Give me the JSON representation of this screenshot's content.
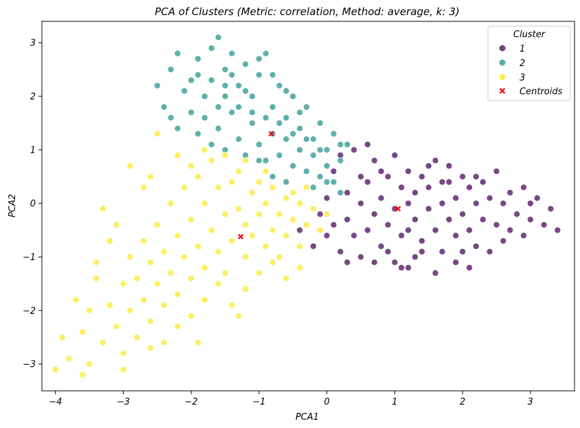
{
  "chart_data": {
    "type": "scatter",
    "title": "PCA of Clusters (Metric: correlation, Method: average, k: 3)",
    "xlabel": "PCA1",
    "ylabel": "PCA2",
    "xlim": [
      -4.2,
      3.65
    ],
    "ylim": [
      -3.5,
      3.4
    ],
    "xticks": [
      -4,
      -3,
      -2,
      -1,
      0,
      1,
      2,
      3
    ],
    "yticks": [
      -3,
      -2,
      -1,
      0,
      1,
      2,
      3
    ],
    "xtick_labels": [
      "−4",
      "−3",
      "−2",
      "−1",
      "0",
      "1",
      "2",
      "3"
    ],
    "ytick_labels": [
      "−3",
      "−2",
      "−1",
      "0",
      "1",
      "2",
      "3"
    ],
    "grid": false,
    "legend": {
      "title": "Cluster",
      "placement": "top-right",
      "entries": [
        {
          "label": "1",
          "color": "#440154",
          "marker": "circle"
        },
        {
          "label": "2",
          "color": "#21918c",
          "marker": "circle"
        },
        {
          "label": "3",
          "color": "#fde725",
          "marker": "circle"
        },
        {
          "label": "Centroids",
          "color": "#ff0000",
          "marker": "x"
        }
      ]
    },
    "series": [
      {
        "name": "1",
        "color": "#440154",
        "points": [
          [
            -0.4,
            -0.5
          ],
          [
            -0.2,
            -0.8
          ],
          [
            0.0,
            -0.6
          ],
          [
            0.1,
            -0.4
          ],
          [
            0.2,
            -0.9
          ],
          [
            0.3,
            -0.3
          ],
          [
            0.3,
            0.2
          ],
          [
            0.4,
            -0.6
          ],
          [
            0.5,
            0.0
          ],
          [
            0.5,
            -1.0
          ],
          [
            0.6,
            0.4
          ],
          [
            0.6,
            -0.5
          ],
          [
            0.7,
            -0.2
          ],
          [
            0.7,
            0.8
          ],
          [
            0.8,
            -0.8
          ],
          [
            0.8,
            0.1
          ],
          [
            0.9,
            0.5
          ],
          [
            0.9,
            -0.4
          ],
          [
            1.0,
            -0.1
          ],
          [
            1.0,
            0.9
          ],
          [
            1.0,
            -1.1
          ],
          [
            1.1,
            0.3
          ],
          [
            1.1,
            -0.6
          ],
          [
            1.2,
            0.0
          ],
          [
            1.2,
            0.6
          ],
          [
            1.2,
            -1.2
          ],
          [
            1.3,
            -0.3
          ],
          [
            1.3,
            0.2
          ],
          [
            1.4,
            -0.7
          ],
          [
            1.4,
            0.5
          ],
          [
            1.5,
            -0.1
          ],
          [
            1.5,
            0.3
          ],
          [
            1.6,
            -0.5
          ],
          [
            1.6,
            0.8
          ],
          [
            1.7,
            0.0
          ],
          [
            1.7,
            -0.9
          ],
          [
            1.8,
            0.4
          ],
          [
            1.8,
            -0.3
          ],
          [
            1.9,
            0.1
          ],
          [
            1.9,
            -0.6
          ],
          [
            2.0,
            0.5
          ],
          [
            2.0,
            -0.2
          ],
          [
            2.1,
            -0.5
          ],
          [
            2.1,
            0.3
          ],
          [
            2.2,
            0.0
          ],
          [
            2.2,
            -0.8
          ],
          [
            2.3,
            0.4
          ],
          [
            2.3,
            -0.3
          ],
          [
            2.4,
            0.1
          ],
          [
            2.5,
            -0.4
          ],
          [
            2.5,
            0.6
          ],
          [
            2.6,
            0.0
          ],
          [
            2.7,
            -0.5
          ],
          [
            2.7,
            0.2
          ],
          [
            2.8,
            -0.2
          ],
          [
            2.9,
            0.3
          ],
          [
            3.0,
            -0.3
          ],
          [
            3.1,
            0.1
          ],
          [
            3.2,
            -0.4
          ],
          [
            3.4,
            -0.5
          ],
          [
            3.3,
            -0.1
          ],
          [
            0.2,
            0.9
          ],
          [
            0.4,
            1.0
          ],
          [
            0.6,
            1.1
          ],
          [
            0.8,
            0.6
          ],
          [
            1.1,
            -1.2
          ],
          [
            1.3,
            -1.0
          ],
          [
            1.6,
            -1.3
          ],
          [
            1.9,
            -1.1
          ],
          [
            2.1,
            -1.2
          ],
          [
            2.4,
            -0.9
          ],
          [
            0.1,
            0.6
          ],
          [
            0.0,
            0.1
          ],
          [
            -0.1,
            -0.2
          ],
          [
            0.3,
            -1.1
          ],
          [
            0.7,
            -1.1
          ],
          [
            1.5,
            0.7
          ],
          [
            2.6,
            -0.7
          ],
          [
            2.9,
            -0.6
          ],
          [
            1.8,
            0.7
          ],
          [
            1.4,
            -0.9
          ],
          [
            0.9,
            -0.9
          ],
          [
            2.2,
            0.5
          ],
          [
            3.0,
            0.0
          ],
          [
            0.5,
            0.5
          ],
          [
            1.7,
            0.4
          ],
          [
            2.0,
            -0.9
          ],
          [
            1.2,
            -0.5
          ]
        ]
      },
      {
        "name": "2",
        "color": "#21918c",
        "points": [
          [
            -2.3,
            2.5
          ],
          [
            -2.2,
            2.8
          ],
          [
            -2.0,
            2.3
          ],
          [
            -1.9,
            2.7
          ],
          [
            -1.8,
            2.0
          ],
          [
            -1.7,
            2.9
          ],
          [
            -1.6,
            3.1
          ],
          [
            -1.5,
            2.5
          ],
          [
            -1.4,
            2.8
          ],
          [
            -1.3,
            2.2
          ],
          [
            -1.2,
            2.6
          ],
          [
            -1.1,
            2.0
          ],
          [
            -1.0,
            2.4
          ],
          [
            -0.9,
            2.8
          ],
          [
            -0.8,
            1.8
          ],
          [
            -0.7,
            2.2
          ],
          [
            -0.6,
            1.6
          ],
          [
            -0.5,
            2.0
          ],
          [
            -0.4,
            1.4
          ],
          [
            -0.3,
            1.8
          ],
          [
            -0.2,
            1.2
          ],
          [
            -0.1,
            1.5
          ],
          [
            0.0,
            1.0
          ],
          [
            0.1,
            1.3
          ],
          [
            0.2,
            0.8
          ],
          [
            0.3,
            1.1
          ],
          [
            -2.4,
            1.8
          ],
          [
            -2.2,
            1.4
          ],
          [
            -2.0,
            1.7
          ],
          [
            -1.9,
            1.3
          ],
          [
            -1.8,
            1.6
          ],
          [
            -1.7,
            1.1
          ],
          [
            -1.6,
            1.4
          ],
          [
            -1.5,
            1.0
          ],
          [
            -1.4,
            1.7
          ],
          [
            -1.3,
            1.2
          ],
          [
            -1.2,
            0.9
          ],
          [
            -1.1,
            1.5
          ],
          [
            -1.0,
            1.1
          ],
          [
            -0.9,
            0.8
          ],
          [
            -0.8,
            1.3
          ],
          [
            -0.7,
            0.9
          ],
          [
            -0.6,
            1.2
          ],
          [
            -0.5,
            0.7
          ],
          [
            -0.4,
            1.0
          ],
          [
            -0.3,
            0.6
          ],
          [
            -0.2,
            0.9
          ],
          [
            -0.1,
            0.5
          ],
          [
            0.0,
            0.7
          ],
          [
            0.1,
            0.4
          ],
          [
            0.2,
            0.2
          ],
          [
            -1.5,
            2.0
          ],
          [
            -1.3,
            1.8
          ],
          [
            -1.1,
            1.7
          ],
          [
            -0.9,
            1.6
          ],
          [
            -0.7,
            1.5
          ],
          [
            -0.5,
            1.3
          ],
          [
            -0.3,
            1.2
          ],
          [
            -2.1,
            2.1
          ],
          [
            -1.9,
            2.4
          ],
          [
            -1.7,
            2.3
          ],
          [
            -1.5,
            2.2
          ],
          [
            -1.0,
            2.7
          ],
          [
            -0.8,
            2.4
          ],
          [
            -0.6,
            2.1
          ],
          [
            -0.4,
            1.7
          ],
          [
            -2.5,
            2.2
          ],
          [
            -1.2,
            2.1
          ],
          [
            -0.2,
            0.3
          ],
          [
            0.0,
            0.4
          ],
          [
            -0.8,
            0.5
          ],
          [
            -0.6,
            0.4
          ],
          [
            -1.0,
            0.8
          ],
          [
            -1.6,
            1.8
          ],
          [
            -1.4,
            2.4
          ],
          [
            -2.3,
            1.6
          ],
          [
            -0.1,
            1.0
          ],
          [
            0.2,
            1.1
          ]
        ]
      },
      {
        "name": "3",
        "color": "#fde725",
        "points": [
          [
            -4.0,
            -3.1
          ],
          [
            -3.9,
            -2.5
          ],
          [
            -3.8,
            -2.9
          ],
          [
            -3.7,
            -1.8
          ],
          [
            -3.6,
            -2.4
          ],
          [
            -3.5,
            -3.0
          ],
          [
            -3.5,
            -2.0
          ],
          [
            -3.4,
            -1.4
          ],
          [
            -3.3,
            -2.6
          ],
          [
            -3.2,
            -1.9
          ],
          [
            -3.1,
            -2.3
          ],
          [
            -3.0,
            -1.5
          ],
          [
            -3.0,
            -2.8
          ],
          [
            -2.9,
            -2.0
          ],
          [
            -2.9,
            -1.0
          ],
          [
            -2.8,
            -2.5
          ],
          [
            -2.8,
            -1.4
          ],
          [
            -2.7,
            -1.8
          ],
          [
            -2.7,
            -0.7
          ],
          [
            -2.6,
            -2.2
          ],
          [
            -2.6,
            -1.1
          ],
          [
            -2.5,
            -1.5
          ],
          [
            -2.5,
            -0.4
          ],
          [
            -2.4,
            -1.9
          ],
          [
            -2.4,
            -0.9
          ],
          [
            -2.3,
            -1.3
          ],
          [
            -2.3,
            0.0
          ],
          [
            -2.2,
            -1.7
          ],
          [
            -2.2,
            -0.6
          ],
          [
            -2.1,
            -1.0
          ],
          [
            -2.1,
            0.3
          ],
          [
            -2.0,
            -1.4
          ],
          [
            -2.0,
            -0.3
          ],
          [
            -1.9,
            -0.8
          ],
          [
            -1.9,
            0.5
          ],
          [
            -1.8,
            -1.2
          ],
          [
            -1.8,
            0.0
          ],
          [
            -1.7,
            -0.5
          ],
          [
            -1.7,
            0.8
          ],
          [
            -1.6,
            -0.9
          ],
          [
            -1.6,
            0.3
          ],
          [
            -1.5,
            -0.2
          ],
          [
            -1.5,
            -1.3
          ],
          [
            -1.4,
            0.4
          ],
          [
            -1.4,
            -0.7
          ],
          [
            -1.3,
            -0.1
          ],
          [
            -1.3,
            0.6
          ],
          [
            -1.2,
            -0.4
          ],
          [
            -1.2,
            -1.0
          ],
          [
            -1.1,
            0.2
          ],
          [
            -1.1,
            -0.6
          ],
          [
            -1.0,
            -0.2
          ],
          [
            -1.0,
            0.4
          ],
          [
            -0.9,
            -0.8
          ],
          [
            -0.9,
            0.0
          ],
          [
            -0.8,
            -0.5
          ],
          [
            -0.8,
            0.3
          ],
          [
            -0.7,
            -0.2
          ],
          [
            -0.7,
            -1.0
          ],
          [
            -0.6,
            0.1
          ],
          [
            -0.6,
            -0.6
          ],
          [
            -0.5,
            -0.3
          ],
          [
            -0.5,
            0.2
          ],
          [
            -0.4,
            -0.8
          ],
          [
            -0.4,
            0.0
          ],
          [
            -0.3,
            -0.4
          ],
          [
            -0.3,
            0.3
          ],
          [
            -0.2,
            -0.1
          ],
          [
            -0.1,
            -0.5
          ],
          [
            0.0,
            -0.2
          ],
          [
            -2.5,
            1.3
          ],
          [
            -2.2,
            0.9
          ],
          [
            -2.0,
            0.7
          ],
          [
            -1.8,
            1.0
          ],
          [
            -2.9,
            0.7
          ],
          [
            -2.7,
            0.3
          ],
          [
            -3.3,
            -0.1
          ],
          [
            -3.2,
            -0.7
          ],
          [
            -3.4,
            -1.1
          ],
          [
            -3.1,
            -0.4
          ],
          [
            -2.0,
            -2.1
          ],
          [
            -1.8,
            -1.8
          ],
          [
            -1.6,
            -1.5
          ],
          [
            -1.4,
            -1.9
          ],
          [
            -1.2,
            -1.6
          ],
          [
            -1.0,
            -1.3
          ],
          [
            -0.8,
            -1.1
          ],
          [
            -0.6,
            -1.4
          ],
          [
            -0.4,
            -1.2
          ],
          [
            -2.4,
            -2.6
          ],
          [
            -2.2,
            -2.3
          ],
          [
            -1.9,
            -2.6
          ],
          [
            -2.6,
            -2.7
          ],
          [
            -3.6,
            -3.2
          ],
          [
            -3.0,
            -3.1
          ],
          [
            -1.5,
            0.9
          ],
          [
            -1.2,
            0.8
          ],
          [
            -0.9,
            0.6
          ],
          [
            -2.6,
            0.5
          ],
          [
            -1.3,
            -2.1
          ]
        ]
      }
    ],
    "centroids": [
      {
        "cluster": "1",
        "x": 1.05,
        "y": -0.1
      },
      {
        "cluster": "2",
        "x": -0.82,
        "y": 1.3
      },
      {
        "cluster": "3",
        "x": -1.27,
        "y": -0.62
      }
    ]
  }
}
